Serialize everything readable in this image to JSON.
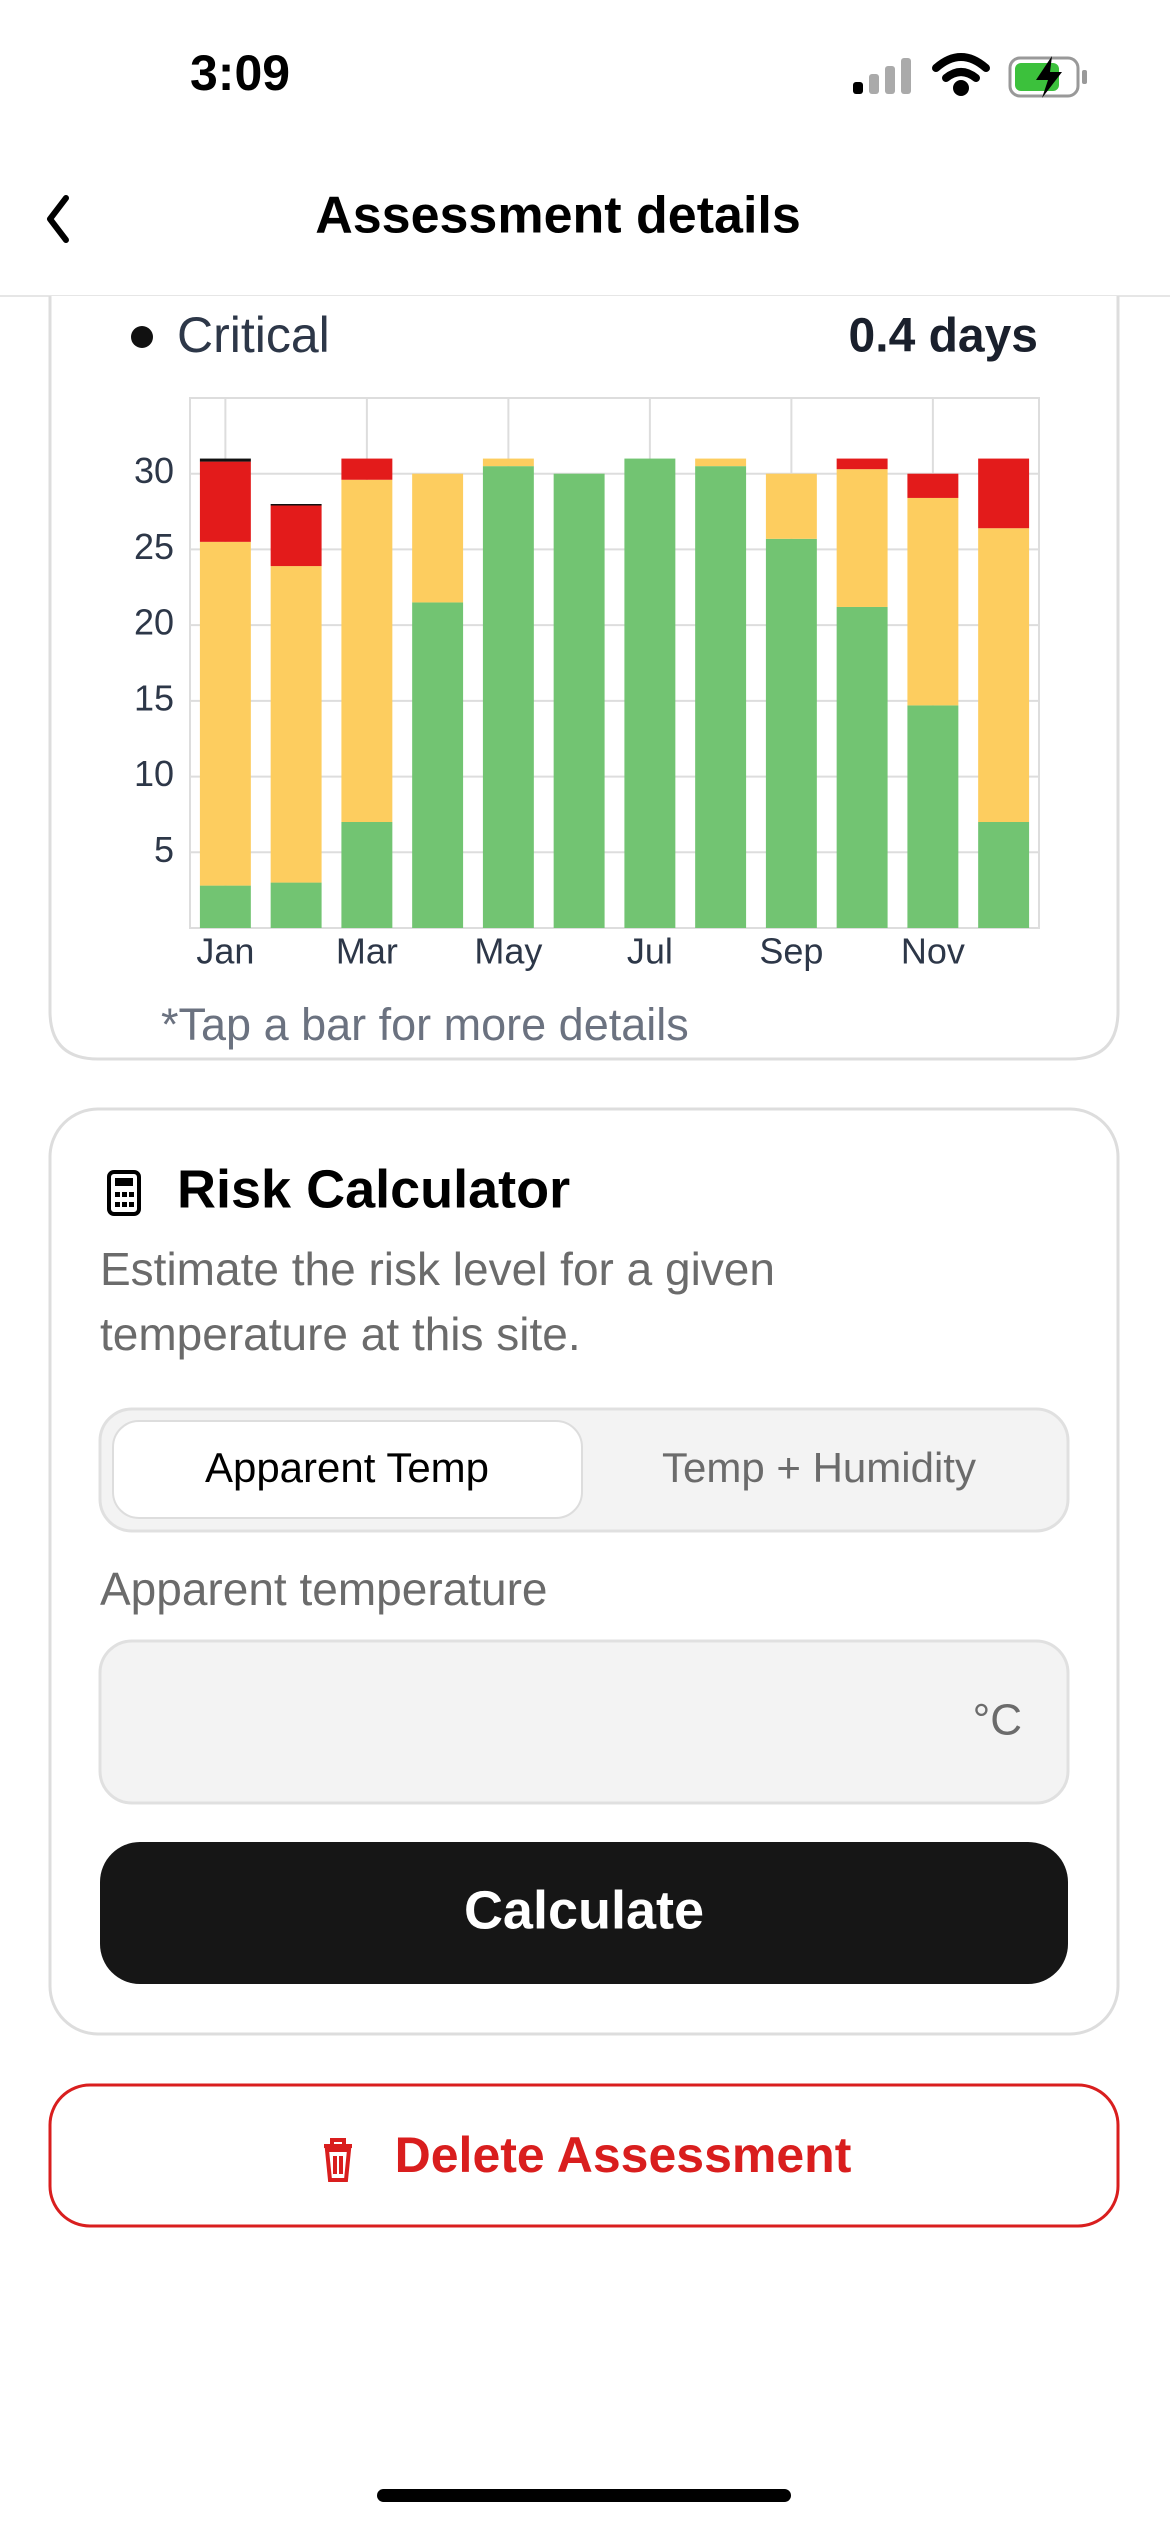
{
  "status_bar": {
    "time": "3:09"
  },
  "header": {
    "title": "Assessment details"
  },
  "summary": {
    "value": "0.4 days"
  },
  "chart_data": {
    "type": "bar",
    "stacked": true,
    "categories": [
      "Jan",
      null,
      "Mar",
      null,
      "May",
      null,
      "Jul",
      null,
      "Sep",
      null,
      "Nov",
      null
    ],
    "series": [
      {
        "color": "#72c472",
        "values": [
          2.8,
          3.0,
          7.0,
          21.5,
          30.5,
          30,
          31,
          30.5,
          25.7,
          21.2,
          14.7,
          7.0
        ]
      },
      {
        "color": "#fdcd5f",
        "values": [
          22.7,
          20.9,
          22.6,
          8.5,
          0.5,
          0,
          0,
          0.5,
          4.3,
          9.1,
          13.7,
          19.4
        ]
      },
      {
        "color": "#e31b1b",
        "values": [
          5.3,
          4.0,
          1.4,
          0,
          0,
          0,
          0,
          0,
          0,
          0.7,
          1.6,
          4.6
        ]
      },
      {
        "name": "Critical",
        "color": "#111111",
        "values": [
          0.2,
          0.1,
          0,
          0,
          0,
          0,
          0,
          0,
          0,
          0,
          0,
          0
        ]
      }
    ],
    "ylim": [
      0,
      35
    ],
    "yticks": [
      5,
      10,
      15,
      20,
      25,
      30
    ],
    "grid": true,
    "note": "*Tap a bar for more details"
  },
  "risk_calculator": {
    "title": "Risk Calculator",
    "description_lines": [
      "Estimate the risk level for a given",
      "temperature at this site."
    ],
    "tabs": [
      "Apparent Temp",
      "Temp + Humidity"
    ],
    "field_label": "Apparent temperature",
    "unit": "°C",
    "button": "Calculate"
  },
  "delete_button": {
    "label": "Delete Assessment"
  }
}
